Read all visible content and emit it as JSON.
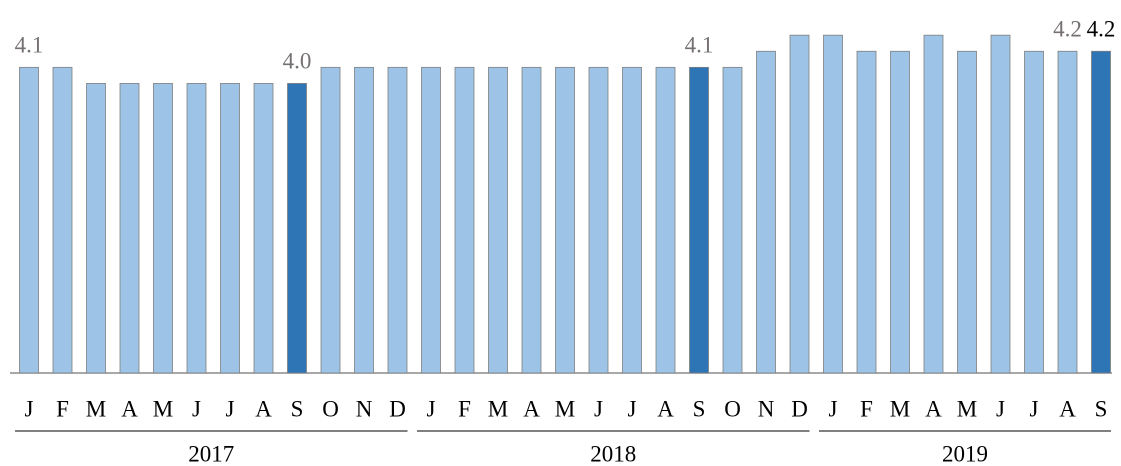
{
  "chart_data": {
    "type": "bar",
    "category_groups": [
      {
        "label": "2017",
        "categories": [
          "J",
          "F",
          "M",
          "A",
          "M",
          "J",
          "J",
          "A",
          "S",
          "O",
          "N",
          "D"
        ]
      },
      {
        "label": "2018",
        "categories": [
          "J",
          "F",
          "M",
          "A",
          "M",
          "J",
          "J",
          "A",
          "S",
          "O",
          "N",
          "D"
        ]
      },
      {
        "label": "2019",
        "categories": [
          "J",
          "F",
          "M",
          "A",
          "M",
          "J",
          "J",
          "A",
          "S"
        ]
      }
    ],
    "values": [
      4.1,
      4.1,
      4.0,
      4.0,
      4.0,
      4.0,
      4.0,
      4.0,
      4.0,
      4.1,
      4.1,
      4.1,
      4.1,
      4.1,
      4.1,
      4.1,
      4.1,
      4.1,
      4.1,
      4.1,
      4.1,
      4.1,
      4.2,
      4.3,
      4.3,
      4.2,
      4.2,
      4.3,
      4.2,
      4.3,
      4.2,
      4.2,
      4.2
    ],
    "value_labels": [
      "4.1",
      null,
      null,
      null,
      null,
      null,
      null,
      null,
      "4.0",
      null,
      null,
      null,
      null,
      null,
      null,
      null,
      null,
      null,
      null,
      null,
      "4.1",
      null,
      null,
      null,
      null,
      null,
      null,
      null,
      null,
      null,
      null,
      "4.2",
      "4.2"
    ],
    "value_label_colors": [
      "#767171",
      null,
      null,
      null,
      null,
      null,
      null,
      null,
      "#767171",
      null,
      null,
      null,
      null,
      null,
      null,
      null,
      null,
      null,
      null,
      null,
      "#767171",
      null,
      null,
      null,
      null,
      null,
      null,
      null,
      null,
      null,
      null,
      "#767171",
      "#000000"
    ],
    "colors": [
      "#9dc3e6",
      "#9dc3e6",
      "#9dc3e6",
      "#9dc3e6",
      "#9dc3e6",
      "#9dc3e6",
      "#9dc3e6",
      "#9dc3e6",
      "#2e75b6",
      "#9dc3e6",
      "#9dc3e6",
      "#9dc3e6",
      "#9dc3e6",
      "#9dc3e6",
      "#9dc3e6",
      "#9dc3e6",
      "#9dc3e6",
      "#9dc3e6",
      "#9dc3e6",
      "#9dc3e6",
      "#2e75b6",
      "#9dc3e6",
      "#9dc3e6",
      "#9dc3e6",
      "#9dc3e6",
      "#9dc3e6",
      "#9dc3e6",
      "#9dc3e6",
      "#9dc3e6",
      "#9dc3e6",
      "#9dc3e6",
      "#9dc3e6",
      "#2e75b6"
    ],
    "ylim": [
      2.2,
      4.5
    ]
  }
}
